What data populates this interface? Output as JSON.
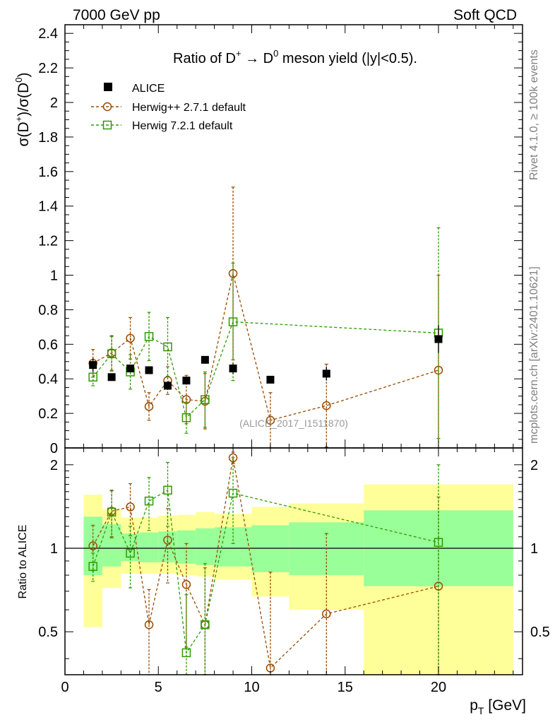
{
  "header": {
    "left": "7000 GeV pp",
    "right": "Soft QCD"
  },
  "side_labels": {
    "rivet": "Rivet 4.1.0, ≥ 100k events",
    "mcplots": "mcplots.cern.ch [arXiv:2401.10621]"
  },
  "chart_data": [
    {
      "type": "scatter",
      "title": "Ratio of D⁺ → D⁰ meson yield (|y|<0.5).",
      "title_parts": {
        "a": "Ratio of D",
        "sup1": "+",
        "arrow": " → D",
        "sup2": "0",
        "b": " meson yield (|y|<0.5)."
      },
      "watermark": "(ALICE_2017_I1511870)",
      "ylabel": "σ(D⁺)/σ(D⁰)",
      "ylabel_parts": {
        "a": "σ(D",
        "sup1": "+",
        "b": ")/σ(D",
        "sup2": "0",
        "c": ")"
      },
      "xlim": [
        0,
        24.5
      ],
      "ylim": [
        0,
        2.45
      ],
      "yticks": [
        0,
        0.2,
        0.4,
        0.6,
        0.8,
        1,
        1.2,
        1.4,
        1.6,
        1.8,
        2,
        2.2,
        2.4
      ],
      "ytick_labels": [
        "0",
        "0.2",
        "0.4",
        "0.6",
        "0.8",
        "1",
        "1.2",
        "1.4",
        "1.6",
        "1.8",
        "2",
        "2.2",
        "2.4"
      ],
      "legend": [
        "ALICE",
        "Herwig++ 2.7.1 default",
        "Herwig 7.2.1 default"
      ],
      "series": [
        {
          "name": "ALICE",
          "color": "#000000",
          "marker": "filled-square",
          "x": [
            1.5,
            2.5,
            3.5,
            4.5,
            5.5,
            6.5,
            7.5,
            9,
            11,
            14,
            20
          ],
          "y": [
            0.48,
            0.41,
            0.46,
            0.45,
            0.36,
            0.39,
            0.51,
            0.46,
            0.395,
            0.43,
            0.63
          ],
          "yerr": [
            0.04,
            0.02,
            0.02,
            0.02,
            0.02,
            0.02,
            0.02,
            0.03,
            0.02,
            0.04,
            0.08
          ],
          "xerr": [
            0.5,
            0.5,
            0.5,
            0.5,
            0.5,
            0.5,
            0.5,
            1,
            1,
            2,
            4
          ]
        },
        {
          "name": "Herwig++ 2.7.1 default",
          "color": "#9a4a00",
          "marker": "open-circle",
          "x": [
            1.5,
            2.5,
            3.5,
            4.5,
            5.5,
            6.5,
            7.5,
            9,
            11,
            14,
            20
          ],
          "y": [
            0.49,
            0.55,
            0.635,
            0.24,
            0.39,
            0.28,
            0.27,
            1.01,
            0.16,
            0.245,
            0.45
          ],
          "yerr": [
            0.08,
            0.1,
            0.12,
            0.08,
            0.08,
            0.14,
            0.16,
            0.5,
            0.16,
            0.24,
            0.55
          ]
        },
        {
          "name": "Herwig 7.2.1 default",
          "color": "#2e9a00",
          "marker": "open-square",
          "x": [
            1.5,
            2.5,
            3.5,
            4.5,
            5.5,
            6.5,
            7.5,
            9,
            20
          ],
          "y": [
            0.41,
            0.545,
            0.44,
            0.645,
            0.585,
            0.175,
            0.28,
            0.73,
            0.665
          ],
          "yerr": [
            0.05,
            0.1,
            0.1,
            0.14,
            0.17,
            0.09,
            0.16,
            0.34,
            0.61
          ]
        }
      ]
    },
    {
      "type": "scatter",
      "title": "",
      "ylabel": "Ratio to ALICE",
      "xlabel": "p_T [GeV]",
      "xlabel_parts": {
        "a": "p",
        "sub": "T",
        "b": " [GeV]"
      },
      "xlim": [
        0,
        24.5
      ],
      "ylim": [
        0.35,
        2.3
      ],
      "yscale": "log",
      "xticks": [
        0,
        5,
        10,
        15,
        20
      ],
      "xtick_labels": [
        "0",
        "5",
        "10",
        "15",
        "20"
      ],
      "yticks": [
        0.5,
        1,
        2
      ],
      "ytick_labels": [
        "0.5",
        "1",
        "2"
      ],
      "bands": [
        {
          "x0": 1,
          "x1": 2,
          "green_lo": 0.8,
          "green_hi": 1.3,
          "yellow_lo": 0.52,
          "yellow_hi": 1.56
        },
        {
          "x0": 2,
          "x1": 3,
          "green_lo": 0.86,
          "green_hi": 1.22,
          "yellow_lo": 0.72,
          "yellow_hi": 1.38
        },
        {
          "x0": 3,
          "x1": 4,
          "green_lo": 0.9,
          "green_hi": 1.13,
          "yellow_lo": 0.81,
          "yellow_hi": 1.29
        },
        {
          "x0": 4,
          "x1": 5,
          "green_lo": 0.89,
          "green_hi": 1.14,
          "yellow_lo": 0.81,
          "yellow_hi": 1.29
        },
        {
          "x0": 5,
          "x1": 6,
          "green_lo": 0.89,
          "green_hi": 1.15,
          "yellow_lo": 0.81,
          "yellow_hi": 1.31
        },
        {
          "x0": 6,
          "x1": 7,
          "green_lo": 0.88,
          "green_hi": 1.16,
          "yellow_lo": 0.8,
          "yellow_hi": 1.32
        },
        {
          "x0": 7,
          "x1": 8,
          "green_lo": 0.87,
          "green_hi": 1.18,
          "yellow_lo": 0.79,
          "yellow_hi": 1.35
        },
        {
          "x0": 8,
          "x1": 10,
          "green_lo": 0.86,
          "green_hi": 1.19,
          "yellow_lo": 0.77,
          "yellow_hi": 1.33
        },
        {
          "x0": 10,
          "x1": 12,
          "green_lo": 0.82,
          "green_hi": 1.21,
          "yellow_lo": 0.67,
          "yellow_hi": 1.41
        },
        {
          "x0": 12,
          "x1": 16,
          "green_lo": 0.8,
          "green_hi": 1.24,
          "yellow_lo": 0.6,
          "yellow_hi": 1.45
        },
        {
          "x0": 16,
          "x1": 24,
          "green_lo": 0.73,
          "green_hi": 1.37,
          "yellow_lo": 0.35,
          "yellow_hi": 1.7
        }
      ],
      "series": [
        {
          "name": "Herwig++ 2.7.1 default",
          "color": "#9a4a00",
          "marker": "open-circle",
          "x": [
            1.5,
            2.5,
            3.5,
            4.5,
            5.5,
            6.5,
            7.5,
            9,
            11,
            14,
            20
          ],
          "y": [
            1.02,
            1.36,
            1.41,
            0.53,
            1.07,
            0.74,
            0.53,
            2.12,
            0.37,
            0.58,
            0.73
          ],
          "yerr": [
            0.19,
            0.26,
            0.3,
            0.18,
            0.32,
            0.3,
            0.32,
            0.1,
            0.45,
            0.55,
            0.8
          ]
        },
        {
          "name": "Herwig 7.2.1 default",
          "color": "#2e9a00",
          "marker": "open-square",
          "x": [
            1.5,
            2.5,
            3.5,
            4.5,
            5.5,
            6.5,
            7.5,
            9,
            20
          ],
          "y": [
            0.86,
            1.35,
            0.96,
            1.48,
            1.62,
            0.42,
            0.53,
            1.58,
            1.05
          ],
          "yerr": [
            0.1,
            0.26,
            0.24,
            0.32,
            0.42,
            0.26,
            0.35,
            0.54,
            0.95
          ]
        }
      ]
    }
  ]
}
